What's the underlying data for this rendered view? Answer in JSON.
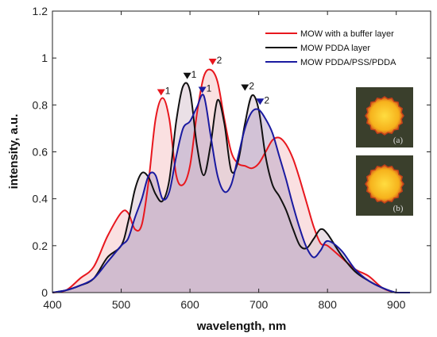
{
  "chart_data": {
    "type": "area",
    "xlabel": "wavelength, nm",
    "ylabel": "intensity, a.u.",
    "xlim": [
      400,
      950
    ],
    "ylim": [
      0,
      1.2
    ],
    "xticks": [
      "400",
      "500",
      "600",
      "700",
      "800",
      "900"
    ],
    "yticks": [
      "0",
      "0.2",
      "0.4",
      "0.6",
      "0.8",
      "1",
      "1.2"
    ],
    "grid": false,
    "legend_position": "top-right",
    "series": [
      {
        "name": "MOW with a buffer layer",
        "color": "#e8171e",
        "x": [
          400,
          420,
          440,
          460,
          480,
          500,
          510,
          520,
          530,
          540,
          550,
          560,
          570,
          580,
          590,
          600,
          610,
          620,
          630,
          640,
          650,
          660,
          670,
          680,
          690,
          700,
          710,
          720,
          730,
          740,
          750,
          760,
          770,
          780,
          790,
          800,
          820,
          840,
          860,
          880,
          900,
          920
        ],
        "y": [
          0,
          0.01,
          0.06,
          0.11,
          0.24,
          0.34,
          0.34,
          0.27,
          0.29,
          0.48,
          0.74,
          0.83,
          0.74,
          0.5,
          0.46,
          0.54,
          0.76,
          0.92,
          0.95,
          0.9,
          0.74,
          0.6,
          0.55,
          0.54,
          0.53,
          0.55,
          0.6,
          0.65,
          0.66,
          0.63,
          0.57,
          0.48,
          0.38,
          0.28,
          0.21,
          0.2,
          0.15,
          0.1,
          0.07,
          0.02,
          0,
          0
        ],
        "fill": "#f5c6c8"
      },
      {
        "name": "MOW PDDA layer",
        "color": "#111111",
        "x": [
          400,
          420,
          440,
          460,
          480,
          500,
          510,
          520,
          530,
          540,
          550,
          560,
          570,
          580,
          590,
          600,
          610,
          620,
          630,
          640,
          650,
          660,
          670,
          680,
          690,
          700,
          710,
          720,
          730,
          740,
          750,
          760,
          770,
          780,
          790,
          800,
          820,
          840,
          860,
          880,
          900,
          920
        ],
        "y": [
          0,
          0.01,
          0.03,
          0.06,
          0.15,
          0.2,
          0.3,
          0.44,
          0.51,
          0.49,
          0.42,
          0.39,
          0.48,
          0.73,
          0.88,
          0.86,
          0.63,
          0.5,
          0.63,
          0.82,
          0.72,
          0.52,
          0.56,
          0.72,
          0.84,
          0.78,
          0.58,
          0.46,
          0.41,
          0.35,
          0.27,
          0.2,
          0.19,
          0.23,
          0.27,
          0.25,
          0.16,
          0.09,
          0.05,
          0.02,
          0,
          0
        ],
        "fill": "#d9c6d2"
      },
      {
        "name": "MOW PDDA/PSS/PDDA",
        "color": "#1a1aa0",
        "x": [
          400,
          420,
          440,
          460,
          480,
          500,
          510,
          520,
          530,
          540,
          550,
          560,
          570,
          580,
          590,
          600,
          610,
          620,
          630,
          640,
          650,
          660,
          670,
          680,
          690,
          700,
          710,
          720,
          730,
          740,
          750,
          760,
          770,
          780,
          790,
          800,
          820,
          840,
          860,
          880,
          900,
          920
        ],
        "y": [
          0,
          0.01,
          0.03,
          0.06,
          0.13,
          0.2,
          0.23,
          0.32,
          0.4,
          0.5,
          0.5,
          0.4,
          0.43,
          0.58,
          0.7,
          0.73,
          0.79,
          0.84,
          0.67,
          0.5,
          0.43,
          0.46,
          0.58,
          0.7,
          0.77,
          0.78,
          0.74,
          0.68,
          0.58,
          0.48,
          0.37,
          0.27,
          0.19,
          0.15,
          0.18,
          0.22,
          0.18,
          0.1,
          0.05,
          0.02,
          0,
          0
        ],
        "fill": "#bda9c9"
      }
    ],
    "peak_markers": [
      {
        "series": 0,
        "x": 558,
        "y": 0.83,
        "label": "1"
      },
      {
        "series": 0,
        "x": 633,
        "y": 0.96,
        "label": "2"
      },
      {
        "series": 1,
        "x": 596,
        "y": 0.9,
        "label": "1"
      },
      {
        "series": 1,
        "x": 680,
        "y": 0.85,
        "label": "2"
      },
      {
        "series": 2,
        "x": 618,
        "y": 0.84,
        "label": "1"
      },
      {
        "series": 2,
        "x": 702,
        "y": 0.79,
        "label": "2"
      }
    ],
    "inset_images": [
      {
        "label": "(a)"
      },
      {
        "label": "(b)"
      }
    ]
  }
}
